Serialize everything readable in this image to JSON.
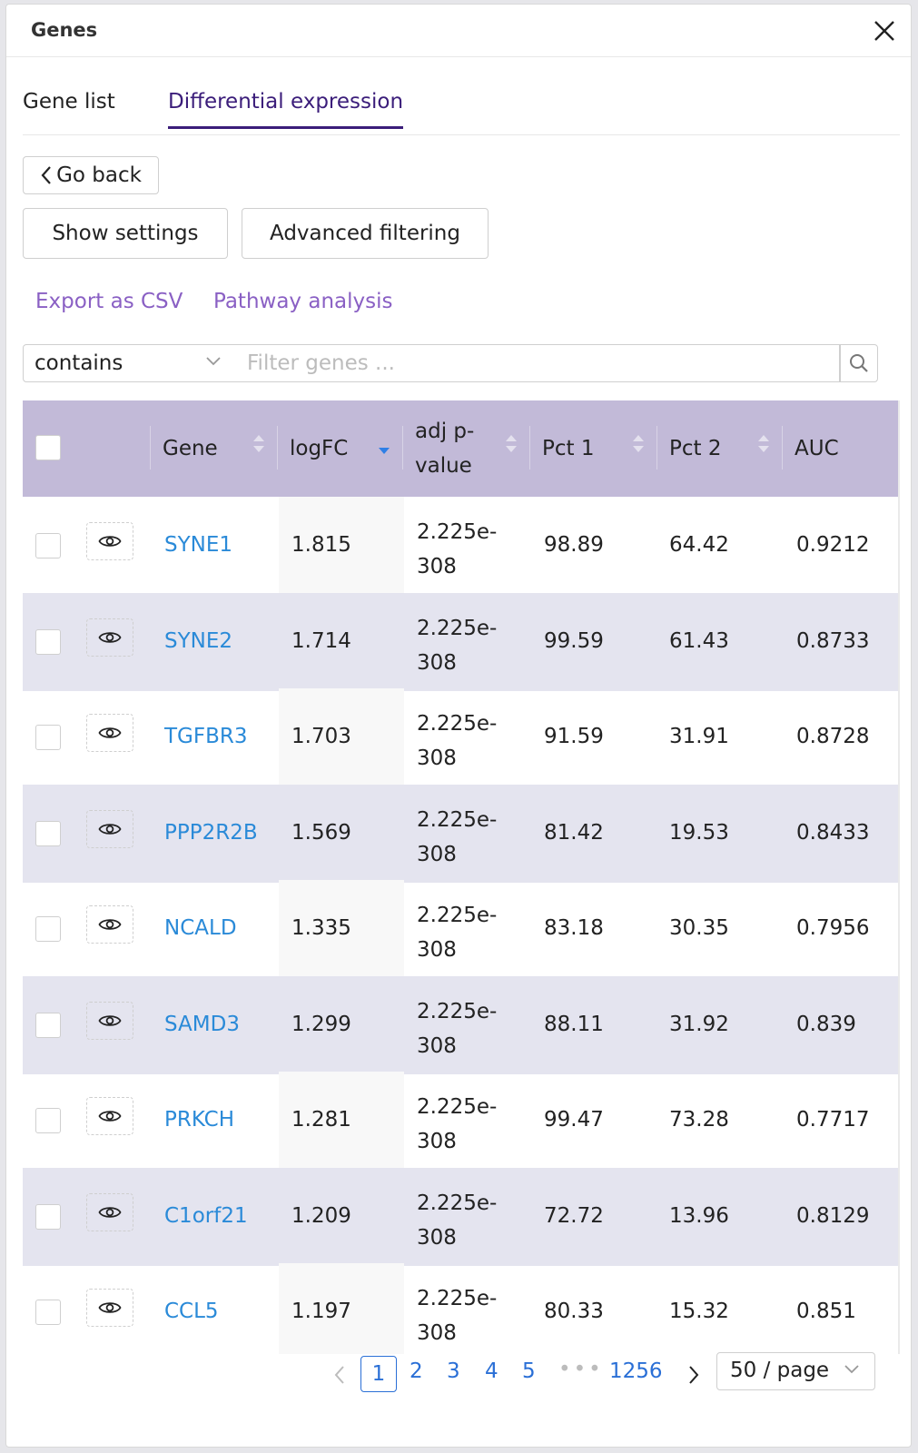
{
  "window": {
    "title": "Genes"
  },
  "tabs": [
    {
      "label": "Gene list"
    },
    {
      "label": "Differential expression",
      "active": true
    }
  ],
  "buttons": {
    "go_back": "Go back",
    "show_settings": "Show settings",
    "advanced_filtering": "Advanced filtering"
  },
  "links": {
    "export_csv": "Export as CSV",
    "pathway_analysis": "Pathway analysis"
  },
  "filter": {
    "mode": "contains",
    "placeholder": "Filter genes ..."
  },
  "table": {
    "columns": [
      "Gene",
      "logFC",
      "adj p-value",
      "Pct 1",
      "Pct 2",
      "AUC"
    ],
    "rows": [
      {
        "gene": "SYNE1",
        "logfc": "1.815",
        "pval": "2.225e-308",
        "pct1": "98.89",
        "pct2": "64.42",
        "auc": "0.9212"
      },
      {
        "gene": "SYNE2",
        "logfc": "1.714",
        "pval": "2.225e-308",
        "pct1": "99.59",
        "pct2": "61.43",
        "auc": "0.8733"
      },
      {
        "gene": "TGFBR3",
        "logfc": "1.703",
        "pval": "2.225e-308",
        "pct1": "91.59",
        "pct2": "31.91",
        "auc": "0.8728"
      },
      {
        "gene": "PPP2R2B",
        "logfc": "1.569",
        "pval": "2.225e-308",
        "pct1": "81.42",
        "pct2": "19.53",
        "auc": "0.8433"
      },
      {
        "gene": "NCALD",
        "logfc": "1.335",
        "pval": "2.225e-308",
        "pct1": "83.18",
        "pct2": "30.35",
        "auc": "0.7956"
      },
      {
        "gene": "SAMD3",
        "logfc": "1.299",
        "pval": "2.225e-308",
        "pct1": "88.11",
        "pct2": "31.92",
        "auc": "0.839"
      },
      {
        "gene": "PRKCH",
        "logfc": "1.281",
        "pval": "2.225e-308",
        "pct1": "99.47",
        "pct2": "73.28",
        "auc": "0.7717"
      },
      {
        "gene": "C1orf21",
        "logfc": "1.209",
        "pval": "2.225e-308",
        "pct1": "72.72",
        "pct2": "13.96",
        "auc": "0.8129"
      },
      {
        "gene": "CCL5",
        "logfc": "1.197",
        "pval": "2.225e-308",
        "pct1": "80.33",
        "pct2": "15.32",
        "auc": "0.851"
      }
    ]
  },
  "pagination": {
    "pages": [
      "1",
      "2",
      "3",
      "4",
      "5"
    ],
    "current": "1",
    "ellipsis": "•••",
    "last": "1256",
    "page_size": "50 / page"
  },
  "colors": {
    "header_bg": "#c2bad8",
    "row_alt_bg": "#e4e4ef",
    "accent_purple": "#3b1d7a",
    "link_purple": "#8a60c4",
    "gene_link": "#2a8ad8",
    "pager_blue": "#2a6fd6"
  }
}
